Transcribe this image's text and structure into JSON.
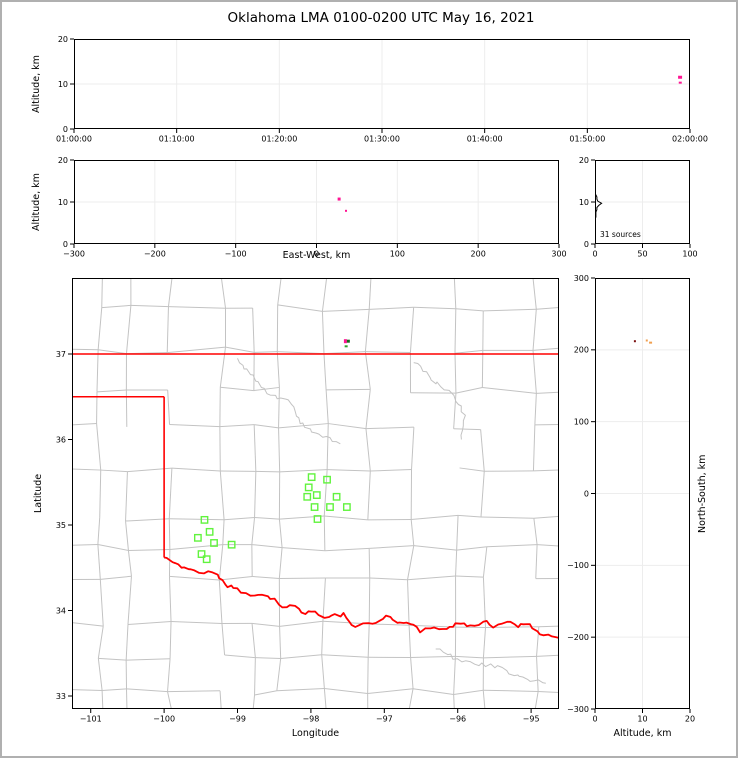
{
  "figure": {
    "title": "Oklahoma LMA 0100-0200 UTC May 16, 2021",
    "border_color": "#b0b0b0",
    "background": "#ffffff"
  },
  "colors": {
    "source_magenta": "#ff1493",
    "source_darkgreen": "#17691c",
    "source_green": "#2fa12f",
    "source_darkred": "#7a0f0f",
    "source_orange": "#f0a050",
    "station_green": "#61f33e",
    "state_border": "#ff0000",
    "county": "#c3c3c3",
    "grid": "#ededed",
    "histogram": "#000000"
  },
  "chart_data": [
    {
      "id": "time_height",
      "type": "scatter",
      "ylabel": "Altitude, km",
      "xlim": [
        0,
        3600
      ],
      "ylim": [
        0,
        20
      ],
      "xticks": [
        0,
        600,
        1200,
        1800,
        2400,
        3000,
        3600
      ],
      "xtick_labels": [
        "01:00:00",
        "01:10:00",
        "01:20:00",
        "01:30:00",
        "01:40:00",
        "01:50:00",
        "02:00:00"
      ],
      "yticks": [
        0,
        10,
        20
      ],
      "ytick_labels": [
        "0",
        "10",
        "20"
      ],
      "points": [
        {
          "x": 3542,
          "y": 11.5,
          "color": "#ff1493",
          "w": 4,
          "h": 3
        },
        {
          "x": 3543,
          "y": 10.3,
          "color": "#ff1493",
          "w": 3,
          "h": 2
        }
      ]
    },
    {
      "id": "ew_height",
      "type": "scatter",
      "xlabel": "East-West, km",
      "ylabel": "Altitude, km",
      "xlim": [
        -300,
        300
      ],
      "ylim": [
        0,
        20
      ],
      "xticks": [
        -300,
        -200,
        -100,
        0,
        100,
        200,
        300
      ],
      "xtick_labels": [
        "−300",
        "−200",
        "−100",
        "0",
        "100",
        "200",
        "300"
      ],
      "yticks": [
        0,
        10,
        20
      ],
      "ytick_labels": [
        "0",
        "10",
        "20"
      ],
      "points": [
        {
          "x": 28,
          "y": 10.7,
          "color": "#ff1493",
          "w": 3,
          "h": 3
        },
        {
          "x": 36.5,
          "y": 7.9,
          "color": "#ff1493",
          "w": 2,
          "h": 2
        }
      ]
    },
    {
      "id": "alt_histogram",
      "type": "line",
      "annotation": "31 sources",
      "xlim": [
        0,
        100
      ],
      "ylim": [
        0,
        20
      ],
      "xticks": [
        0,
        50,
        100
      ],
      "xtick_labels": [
        "0",
        "50",
        "100"
      ],
      "yticks": [
        0,
        10,
        20
      ],
      "ytick_labels": [
        "0",
        "10",
        "20"
      ],
      "profile_alt_count": [
        [
          12.0,
          0
        ],
        [
          11.7,
          1
        ],
        [
          11.2,
          2
        ],
        [
          10.7,
          2
        ],
        [
          10.2,
          3
        ],
        [
          9.7,
          7
        ],
        [
          9.2,
          4
        ],
        [
          8.7,
          2
        ],
        [
          8.2,
          2
        ],
        [
          7.6,
          1
        ],
        [
          7.0,
          1
        ],
        [
          6.4,
          1
        ],
        [
          6.0,
          0
        ]
      ]
    },
    {
      "id": "map",
      "type": "scatter",
      "grid": false,
      "xlabel": "Longitude",
      "ylabel": "Latitude",
      "xlim": [
        -101.255,
        -94.62
      ],
      "ylim": [
        32.848,
        37.889
      ],
      "xticks": [
        -101,
        -100,
        -99,
        -98,
        -97,
        -96,
        -95
      ],
      "xtick_labels": [
        "−101",
        "−100",
        "−99",
        "−98",
        "−97",
        "−96",
        "−95"
      ],
      "yticks": [
        33,
        34,
        35,
        36,
        37
      ],
      "ytick_labels": [
        "33",
        "34",
        "35",
        "36",
        "37"
      ],
      "stations": [
        [
          -97.99,
          35.56
        ],
        [
          -97.78,
          35.53
        ],
        [
          -98.03,
          35.44
        ],
        [
          -98.05,
          35.33
        ],
        [
          -97.92,
          35.35
        ],
        [
          -97.65,
          35.33
        ],
        [
          -97.95,
          35.21
        ],
        [
          -97.74,
          35.21
        ],
        [
          -97.51,
          35.21
        ],
        [
          -97.91,
          35.07
        ],
        [
          -99.45,
          35.06
        ],
        [
          -99.38,
          34.92
        ],
        [
          -99.54,
          34.85
        ],
        [
          -99.32,
          34.79
        ],
        [
          -99.08,
          34.77
        ],
        [
          -99.49,
          34.66
        ],
        [
          -99.42,
          34.6
        ]
      ],
      "sources": [
        {
          "x": -97.53,
          "y": 37.15,
          "color": "#ff1493",
          "w": 3,
          "h": 4
        },
        {
          "x": -97.49,
          "y": 37.15,
          "color": "#17691c",
          "w": 3,
          "h": 3
        },
        {
          "x": -97.52,
          "y": 37.09,
          "color": "#2fa12f",
          "w": 3,
          "h": 2
        }
      ],
      "state_border": {
        "color": "#ff0000",
        "segments": [
          [
            [
              -101.26,
              37.0
            ],
            [
              -94.62,
              37.0
            ]
          ],
          [
            [
              -94.62,
              37.0
            ],
            [
              -94.62,
              36.5
            ]
          ],
          [
            [
              -101.26,
              36.5
            ],
            [
              -100.0,
              36.5
            ]
          ],
          [
            [
              -100.0,
              36.5
            ],
            [
              -100.0,
              34.62
            ]
          ]
        ],
        "red_river": [
          [
            -100.0,
            34.62
          ],
          [
            -99.85,
            34.55
          ],
          [
            -99.72,
            34.49
          ],
          [
            -99.58,
            34.47
          ],
          [
            -99.45,
            34.45
          ],
          [
            -99.27,
            34.43
          ],
          [
            -99.14,
            34.29
          ],
          [
            -99.0,
            34.24
          ],
          [
            -98.88,
            34.2
          ],
          [
            -98.6,
            34.16
          ],
          [
            -98.49,
            34.12
          ],
          [
            -98.39,
            34.05
          ],
          [
            -98.22,
            34.07
          ],
          [
            -98.09,
            33.96
          ],
          [
            -97.95,
            33.99
          ],
          [
            -97.81,
            33.92
          ],
          [
            -97.56,
            33.95
          ],
          [
            -97.4,
            33.82
          ],
          [
            -97.28,
            33.87
          ],
          [
            -97.15,
            33.84
          ],
          [
            -96.98,
            33.95
          ],
          [
            -96.83,
            33.87
          ],
          [
            -96.64,
            33.84
          ],
          [
            -96.5,
            33.76
          ],
          [
            -96.37,
            33.8
          ],
          [
            -96.16,
            33.78
          ],
          [
            -95.97,
            33.86
          ],
          [
            -95.82,
            33.82
          ],
          [
            -95.6,
            33.88
          ],
          [
            -95.52,
            33.82
          ],
          [
            -95.34,
            33.87
          ],
          [
            -95.18,
            33.82
          ],
          [
            -95.05,
            33.86
          ],
          [
            -94.89,
            33.74
          ],
          [
            -94.76,
            33.72
          ],
          [
            -94.62,
            33.68
          ]
        ]
      },
      "rivers": [
        [
          [
            -99.0,
            36.95
          ],
          [
            -98.6,
            36.55
          ],
          [
            -98.3,
            36.45
          ],
          [
            -98.15,
            36.2
          ],
          [
            -97.9,
            36.05
          ],
          [
            -97.6,
            35.95
          ]
        ],
        [
          [
            -96.6,
            36.9
          ],
          [
            -96.35,
            36.7
          ],
          [
            -96.1,
            36.55
          ],
          [
            -95.9,
            36.3
          ],
          [
            -95.95,
            36.0
          ]
        ],
        [
          [
            -96.3,
            33.55
          ],
          [
            -95.9,
            33.4
          ],
          [
            -95.5,
            33.35
          ],
          [
            -95.1,
            33.2
          ],
          [
            -94.8,
            33.15
          ]
        ]
      ]
    },
    {
      "id": "ns_height",
      "type": "scatter",
      "xlabel": "Altitude, km",
      "ylabel2": "North-South, km",
      "xlim": [
        0,
        20
      ],
      "ylim": [
        -300,
        300
      ],
      "xticks": [
        0,
        10,
        20
      ],
      "xtick_labels": [
        "0",
        "10",
        "20"
      ],
      "yticks": [
        300,
        200,
        100,
        0,
        -100,
        -200,
        -300
      ],
      "ytick_labels": [
        "300",
        "200",
        "100",
        "0",
        "−100",
        "−200",
        "−300"
      ],
      "points": [
        {
          "x": 8.4,
          "y": 212,
          "color": "#7a0f0f",
          "w": 2,
          "h": 2
        },
        {
          "x": 10.9,
          "y": 213,
          "color": "#f0a050",
          "w": 2,
          "h": 2
        },
        {
          "x": 11.7,
          "y": 210,
          "color": "#f0a050",
          "w": 3,
          "h": 2
        }
      ]
    }
  ]
}
